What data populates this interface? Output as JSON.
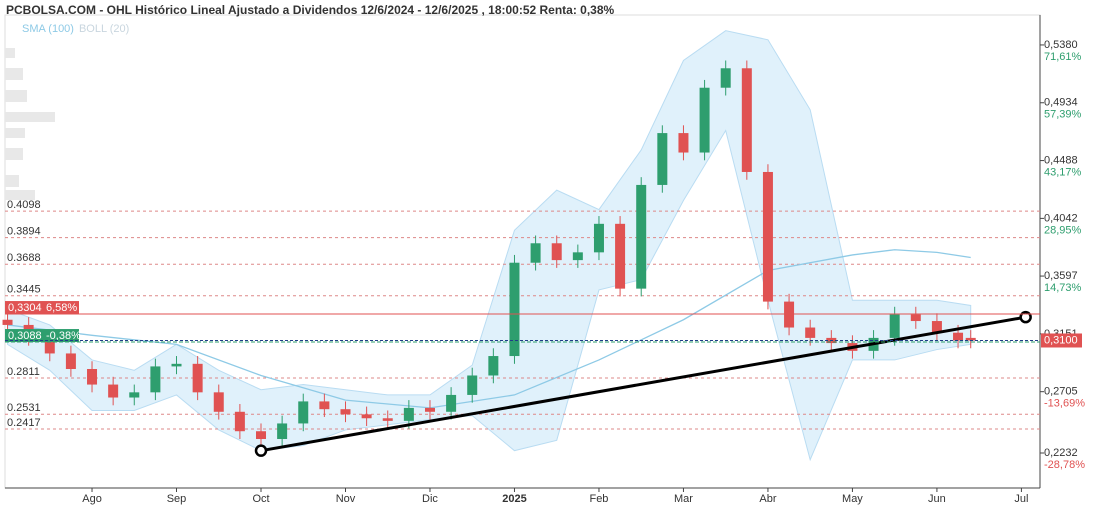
{
  "chart_data": {
    "type": "candlestick",
    "title": "PCBOLSA.COM - OHL Histórico Lineal Ajustado a Dividendos 12/6/2024 - 12/6/2025 , 18:00:52 Renta: 0,38%",
    "legend": [
      {
        "name": "SMA (100)",
        "color": "#8ecae6"
      },
      {
        "name": "BOLL (20)",
        "color": "#c9d6df"
      }
    ],
    "xlim": [
      -0.03,
      12.22
    ],
    "xticks": [
      {
        "value": 1,
        "label": "Ago"
      },
      {
        "value": 2,
        "label": "Sep"
      },
      {
        "value": 3,
        "label": "Oct"
      },
      {
        "value": 4,
        "label": "Nov"
      },
      {
        "value": 5,
        "label": "Dic"
      },
      {
        "value": 6,
        "label": "2025"
      },
      {
        "value": 7,
        "label": "Feb"
      },
      {
        "value": 8,
        "label": "Mar"
      },
      {
        "value": 9,
        "label": "Abr"
      },
      {
        "value": 10,
        "label": "May"
      },
      {
        "value": 11,
        "label": "Jun"
      },
      {
        "value": 12,
        "label": "Jul"
      }
    ],
    "ylim": [
      0.1962,
      0.5611
    ],
    "yticks": [
      {
        "value": 0.538,
        "label": "0,5380"
      },
      {
        "value": 0.4934,
        "label": "0,4934"
      },
      {
        "value": 0.4488,
        "label": "0,4488"
      },
      {
        "value": 0.4042,
        "label": "0,4042"
      },
      {
        "value": 0.3597,
        "label": "0,3597"
      },
      {
        "value": 0.3151,
        "label": "0,3151"
      },
      {
        "value": 0.2705,
        "label": "0,2705"
      },
      {
        "value": 0.2232,
        "label": "0,2232"
      }
    ],
    "ytick_pct": [
      "71,61%",
      "57,39%",
      "43,17%",
      "28,95%",
      "14,73%",
      null,
      "-13,69%",
      "-28,78%"
    ],
    "levels": [
      0.4098,
      0.3894,
      0.3688,
      0.3445,
      0.2811,
      0.2531,
      0.2417
    ],
    "up_color": "#2e9e6e",
    "down_color": "#e05252",
    "x": [
      0,
      0.25,
      0.5,
      0.75,
      1,
      1.25,
      1.5,
      1.75,
      2,
      2.25,
      2.5,
      2.75,
      3,
      3.25,
      3.5,
      3.75,
      4,
      4.25,
      4.5,
      4.75,
      5,
      5.25,
      5.5,
      5.75,
      6,
      6.25,
      6.5,
      6.75,
      7,
      7.25,
      7.5,
      7.75,
      8,
      8.25,
      8.5,
      8.75,
      9,
      9.25,
      9.5,
      9.75,
      10,
      10.25,
      10.5,
      10.75,
      11,
      11.25,
      11.4
    ],
    "open": [
      0.326,
      0.322,
      0.312,
      0.3,
      0.288,
      0.276,
      0.266,
      0.27,
      0.29,
      0.292,
      0.27,
      0.255,
      0.24,
      0.234,
      0.246,
      0.263,
      0.257,
      0.253,
      0.25,
      0.248,
      0.258,
      0.255,
      0.268,
      0.283,
      0.298,
      0.37,
      0.385,
      0.372,
      0.378,
      0.4,
      0.35,
      0.43,
      0.47,
      0.455,
      0.505,
      0.52,
      0.44,
      0.34,
      0.32,
      0.312,
      0.308,
      0.302,
      0.312,
      0.33,
      0.325,
      0.316,
      0.312
    ],
    "high": [
      0.332,
      0.328,
      0.318,
      0.306,
      0.294,
      0.282,
      0.276,
      0.296,
      0.298,
      0.298,
      0.276,
      0.261,
      0.246,
      0.252,
      0.269,
      0.269,
      0.263,
      0.259,
      0.256,
      0.264,
      0.264,
      0.274,
      0.289,
      0.304,
      0.376,
      0.391,
      0.391,
      0.384,
      0.406,
      0.406,
      0.436,
      0.476,
      0.476,
      0.511,
      0.526,
      0.526,
      0.446,
      0.346,
      0.326,
      0.318,
      0.314,
      0.318,
      0.336,
      0.336,
      0.331,
      0.322,
      0.318
    ],
    "low": [
      0.316,
      0.306,
      0.294,
      0.282,
      0.27,
      0.26,
      0.26,
      0.264,
      0.284,
      0.264,
      0.249,
      0.234,
      0.228,
      0.228,
      0.24,
      0.251,
      0.247,
      0.244,
      0.242,
      0.242,
      0.249,
      0.249,
      0.262,
      0.277,
      0.292,
      0.364,
      0.366,
      0.366,
      0.372,
      0.344,
      0.344,
      0.424,
      0.449,
      0.449,
      0.499,
      0.434,
      0.334,
      0.314,
      0.306,
      0.302,
      0.296,
      0.296,
      0.306,
      0.319,
      0.31,
      0.304,
      0.304
    ],
    "close": [
      0.322,
      0.312,
      0.3,
      0.288,
      0.276,
      0.266,
      0.27,
      0.29,
      0.292,
      0.27,
      0.255,
      0.24,
      0.234,
      0.246,
      0.263,
      0.257,
      0.253,
      0.25,
      0.248,
      0.258,
      0.255,
      0.268,
      0.283,
      0.298,
      0.37,
      0.385,
      0.372,
      0.378,
      0.4,
      0.35,
      0.43,
      0.47,
      0.455,
      0.505,
      0.52,
      0.44,
      0.34,
      0.32,
      0.312,
      0.308,
      0.302,
      0.312,
      0.33,
      0.325,
      0.316,
      0.31,
      0.31
    ],
    "sma": {
      "x": [
        0,
        1,
        2,
        3,
        4,
        5,
        6,
        7,
        8,
        9,
        10,
        10.5,
        11,
        11.4
      ],
      "values": [
        0.322,
        0.314,
        0.307,
        0.283,
        0.264,
        0.258,
        0.268,
        0.295,
        0.326,
        0.364,
        0.376,
        0.38,
        0.378,
        0.374
      ]
    },
    "bollinger": {
      "x": [
        0,
        0.5,
        1,
        1.5,
        2,
        2.5,
        3,
        3.5,
        4,
        4.5,
        5,
        5.5,
        6,
        6.5,
        7,
        7.5,
        8,
        8.5,
        9,
        9.5,
        10,
        10.5,
        11,
        11.4
      ],
      "upper": [
        0.334,
        0.322,
        0.295,
        0.287,
        0.307,
        0.287,
        0.272,
        0.276,
        0.272,
        0.268,
        0.268,
        0.291,
        0.395,
        0.426,
        0.411,
        0.457,
        0.526,
        0.549,
        0.542,
        0.488,
        0.341,
        0.341,
        0.341,
        0.337
      ],
      "lower": [
        0.307,
        0.287,
        0.256,
        0.256,
        0.268,
        0.241,
        0.225,
        0.229,
        0.241,
        0.245,
        0.249,
        0.252,
        0.225,
        0.233,
        0.349,
        0.357,
        0.418,
        0.472,
        0.341,
        0.218,
        0.295,
        0.295,
        0.303,
        0.307
      ]
    },
    "trendline": {
      "x": [
        3.0,
        12.05
      ],
      "values": [
        0.225,
        0.328
      ]
    },
    "price_tags": [
      {
        "value": 0.3304,
        "label": "0,3304",
        "change": "6,58%",
        "color": "#e05252"
      },
      {
        "value": 0.3088,
        "label": "0,3088",
        "change": "-0,38%",
        "color": "#2e9e6e"
      }
    ],
    "last_tag": {
      "value": 0.31,
      "label": "0,3100",
      "color": "#e05252"
    }
  }
}
